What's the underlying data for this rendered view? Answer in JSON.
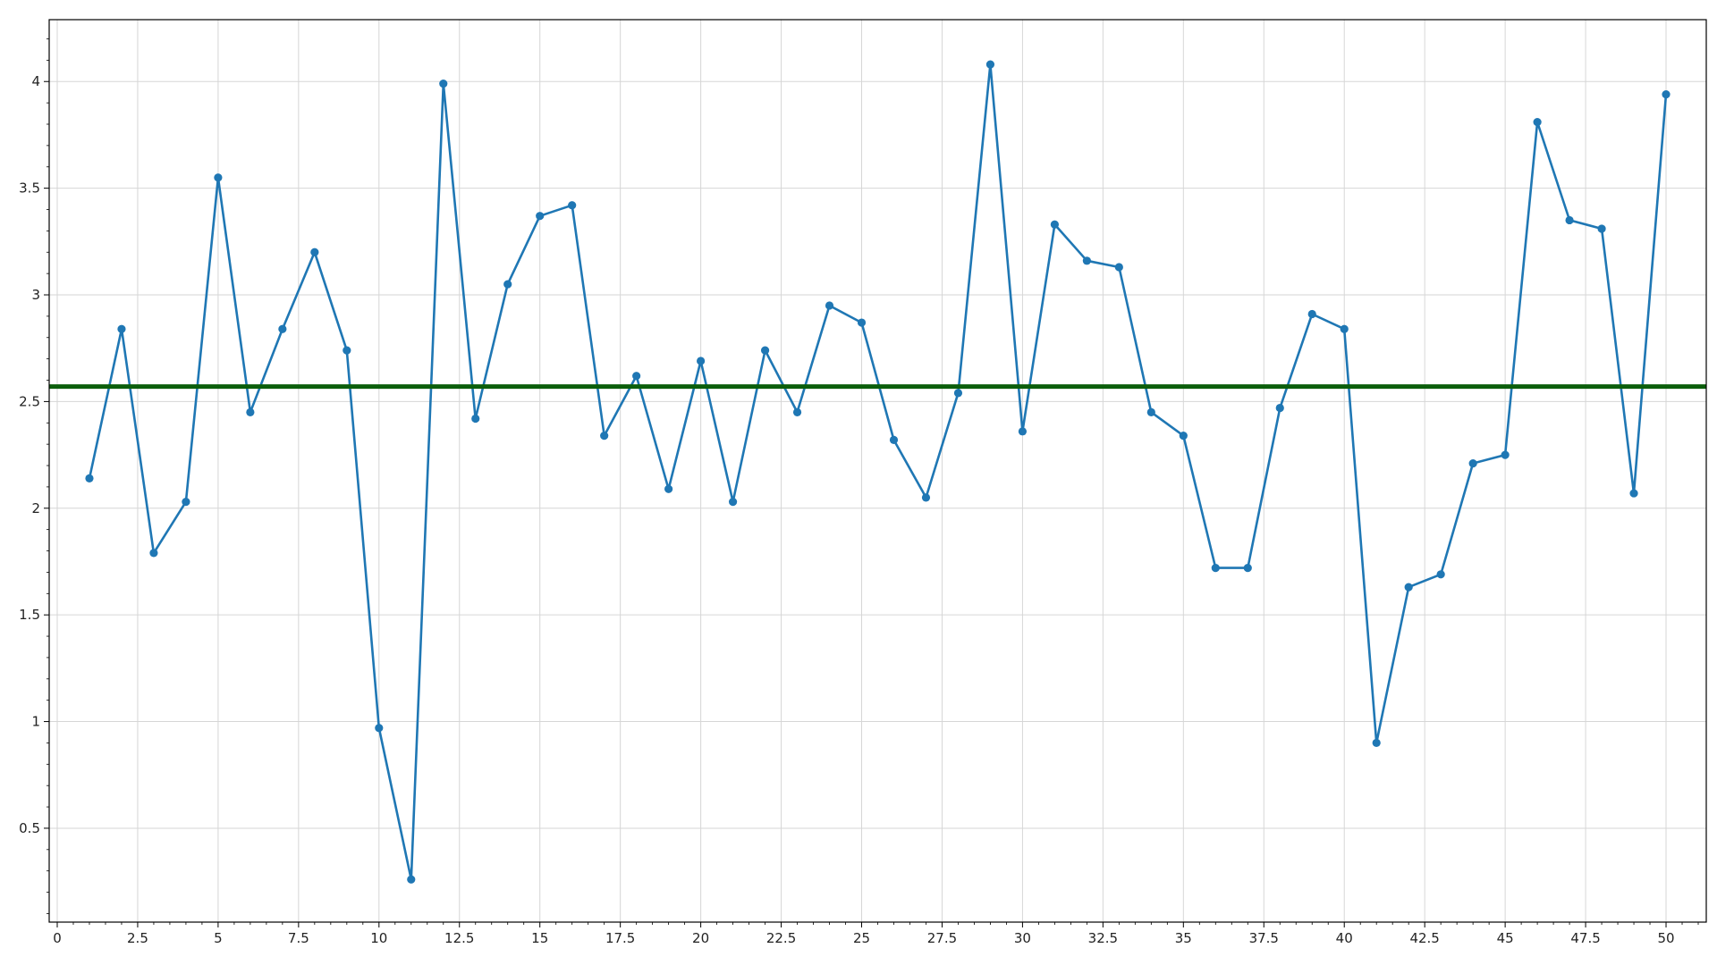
{
  "chart_data": {
    "type": "line",
    "title": "",
    "xlabel": "",
    "ylabel": "",
    "xlim": [
      -0.25,
      51.25
    ],
    "ylim": [
      0.06,
      4.29
    ],
    "grid": true,
    "x_ticks": [
      0,
      2.5,
      5,
      7.5,
      10,
      12.5,
      15,
      17.5,
      20,
      22.5,
      25,
      27.5,
      30,
      32.5,
      35,
      37.5,
      40,
      42.5,
      45,
      47.5,
      50
    ],
    "y_ticks": [
      0.5,
      1,
      1.5,
      2,
      2.5,
      3,
      3.5,
      4
    ],
    "series": [
      {
        "color": "#1f77b4",
        "marker": "circle",
        "x": [
          1,
          2,
          3,
          4,
          5,
          6,
          7,
          8,
          9,
          10,
          11,
          12,
          13,
          14,
          15,
          16,
          17,
          18,
          19,
          20,
          21,
          22,
          23,
          24,
          25,
          26,
          27,
          28,
          29,
          30,
          31,
          32,
          33,
          34,
          35,
          36,
          37,
          38,
          39,
          40,
          41,
          42,
          43,
          44,
          45,
          46,
          47,
          48,
          49,
          50
        ],
        "values": [
          2.14,
          2.84,
          1.79,
          2.03,
          3.55,
          2.45,
          2.84,
          3.2,
          2.74,
          0.97,
          0.26,
          3.99,
          2.42,
          3.05,
          3.37,
          3.42,
          2.34,
          2.62,
          2.09,
          2.69,
          2.03,
          2.74,
          2.45,
          2.95,
          2.87,
          2.32,
          2.05,
          2.54,
          4.08,
          2.36,
          3.33,
          3.16,
          3.13,
          2.45,
          2.34,
          1.72,
          1.72,
          2.47,
          2.91,
          2.84,
          0.9,
          1.63,
          1.69,
          2.21,
          2.25,
          3.81,
          3.35,
          3.31,
          2.07,
          3.94
        ]
      }
    ],
    "reference_line": {
      "y": 2.57,
      "color": "#0b5e0b"
    }
  }
}
